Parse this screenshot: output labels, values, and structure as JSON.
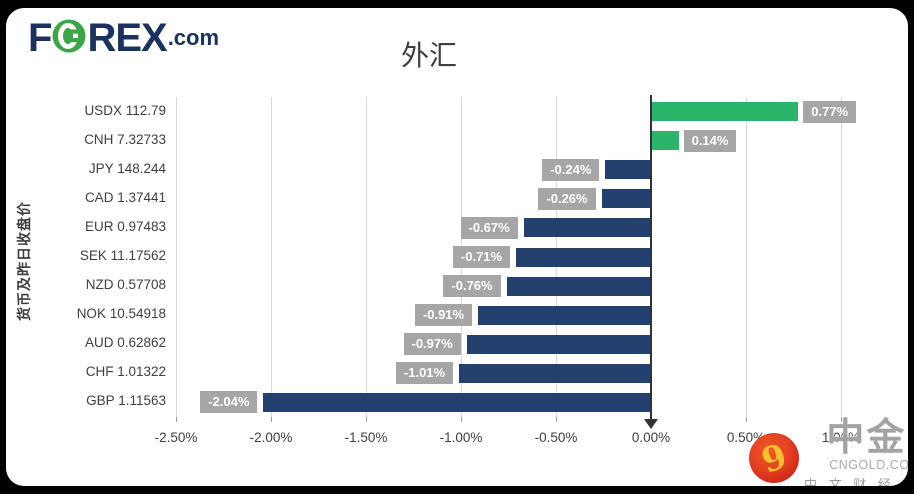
{
  "header": {
    "logo": {
      "part_f": "F",
      "part_rex": "REX",
      "part_dotcom": ".com"
    },
    "title": "外汇"
  },
  "chart_data": {
    "type": "bar",
    "orientation": "horizontal",
    "title": "外汇",
    "ylabel": "货币及昨日收盘价",
    "xlim": [
      -2.5,
      1.0
    ],
    "grid": true,
    "x_ticks": [
      {
        "value": -2.5,
        "label": "-2.50%"
      },
      {
        "value": -2.0,
        "label": "-2.00%"
      },
      {
        "value": -1.5,
        "label": "-1.50%"
      },
      {
        "value": -1.0,
        "label": "-1.00%"
      },
      {
        "value": -0.5,
        "label": "-0.50%"
      },
      {
        "value": 0.0,
        "label": "0.00%"
      },
      {
        "value": 0.5,
        "label": "0.50%"
      },
      {
        "value": 1.0,
        "label": "1.00%"
      }
    ],
    "bars": [
      {
        "code": "USDX",
        "price": "112.79",
        "pct": 0.77,
        "label": "0.77%"
      },
      {
        "code": "CNH",
        "price": "7.32733",
        "pct": 0.14,
        "label": "0.14%"
      },
      {
        "code": "JPY",
        "price": "148.244",
        "pct": -0.24,
        "label": "-0.24%"
      },
      {
        "code": "CAD",
        "price": "1.37441",
        "pct": -0.26,
        "label": "-0.26%"
      },
      {
        "code": "EUR",
        "price": "0.97483",
        "pct": -0.67,
        "label": "-0.67%"
      },
      {
        "code": "SEK",
        "price": "11.17562",
        "pct": -0.71,
        "label": "-0.71%"
      },
      {
        "code": "NZD",
        "price": "0.57708",
        "pct": -0.76,
        "label": "-0.76%"
      },
      {
        "code": "NOK",
        "price": "10.54918",
        "pct": -0.91,
        "label": "-0.91%"
      },
      {
        "code": "AUD",
        "price": "0.62862",
        "pct": -0.97,
        "label": "-0.97%"
      },
      {
        "code": "CHF",
        "price": "1.01322",
        "pct": -1.01,
        "label": "-1.01%"
      },
      {
        "code": "GBP",
        "price": "1.11563",
        "pct": -2.04,
        "label": "-2.04%"
      }
    ],
    "colors": {
      "positive": "#2bb56a",
      "negative": "#24406e",
      "value_label_bg": "#a6a6a6",
      "value_label_text": "#ffffff",
      "grid": "#d9d9d9",
      "axis": "#333333",
      "text": "#3f3f3f",
      "logo_navy": "#1b3160",
      "logo_green": "#3aa648"
    }
  },
  "watermark": {
    "brand": "中金网",
    "domain": "CNGOLD.COM.CN",
    "slogan": "中 文 财 经 新 媒 体"
  }
}
